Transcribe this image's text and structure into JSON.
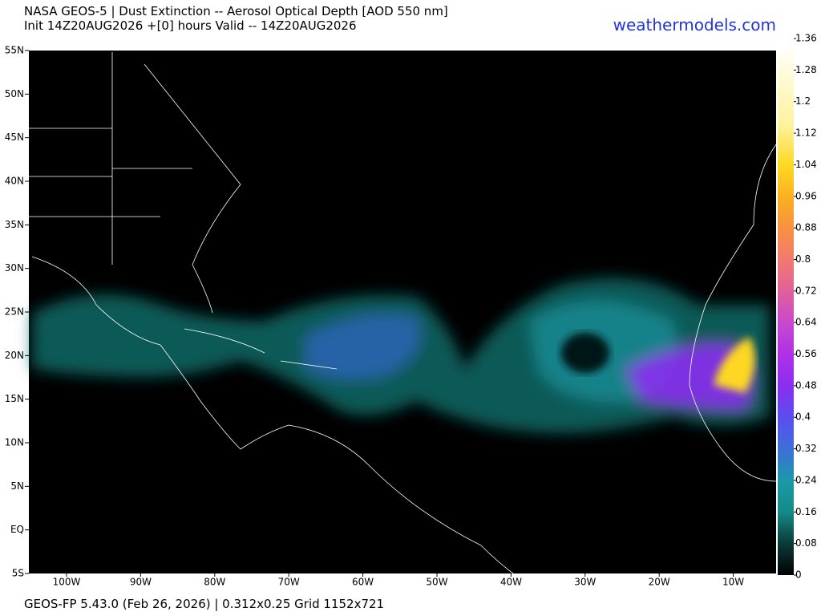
{
  "header": {
    "title": "NASA GEOS-5 | Dust Extinction -- Aerosol Optical Depth [AOD 550 nm]",
    "subtitle": "Init 14Z20AUG2026 +[0] hours Valid -- 14Z20AUG2026",
    "site": "weathermodels.com"
  },
  "map": {
    "lat_labels": [
      "55N",
      "50N",
      "45N",
      "40N",
      "35N",
      "30N",
      "25N",
      "20N",
      "15N",
      "10N",
      "5N",
      "EQ",
      "5S"
    ],
    "lon_labels": [
      "100W",
      "90W",
      "80W",
      "70W",
      "60W",
      "50W",
      "40W",
      "30W",
      "20W",
      "10W"
    ]
  },
  "colorbar": {
    "ticks": [
      0,
      0.08,
      0.16,
      0.24,
      0.32,
      0.4,
      0.48,
      0.56,
      0.64,
      0.72,
      0.8,
      0.88,
      0.96,
      1.04,
      1.12,
      1.2,
      1.28,
      1.36
    ]
  },
  "footer": "GEOS-FP 5.43.0 (Feb 26, 2026) | 0.312x0.25 Grid 1152x721"
}
